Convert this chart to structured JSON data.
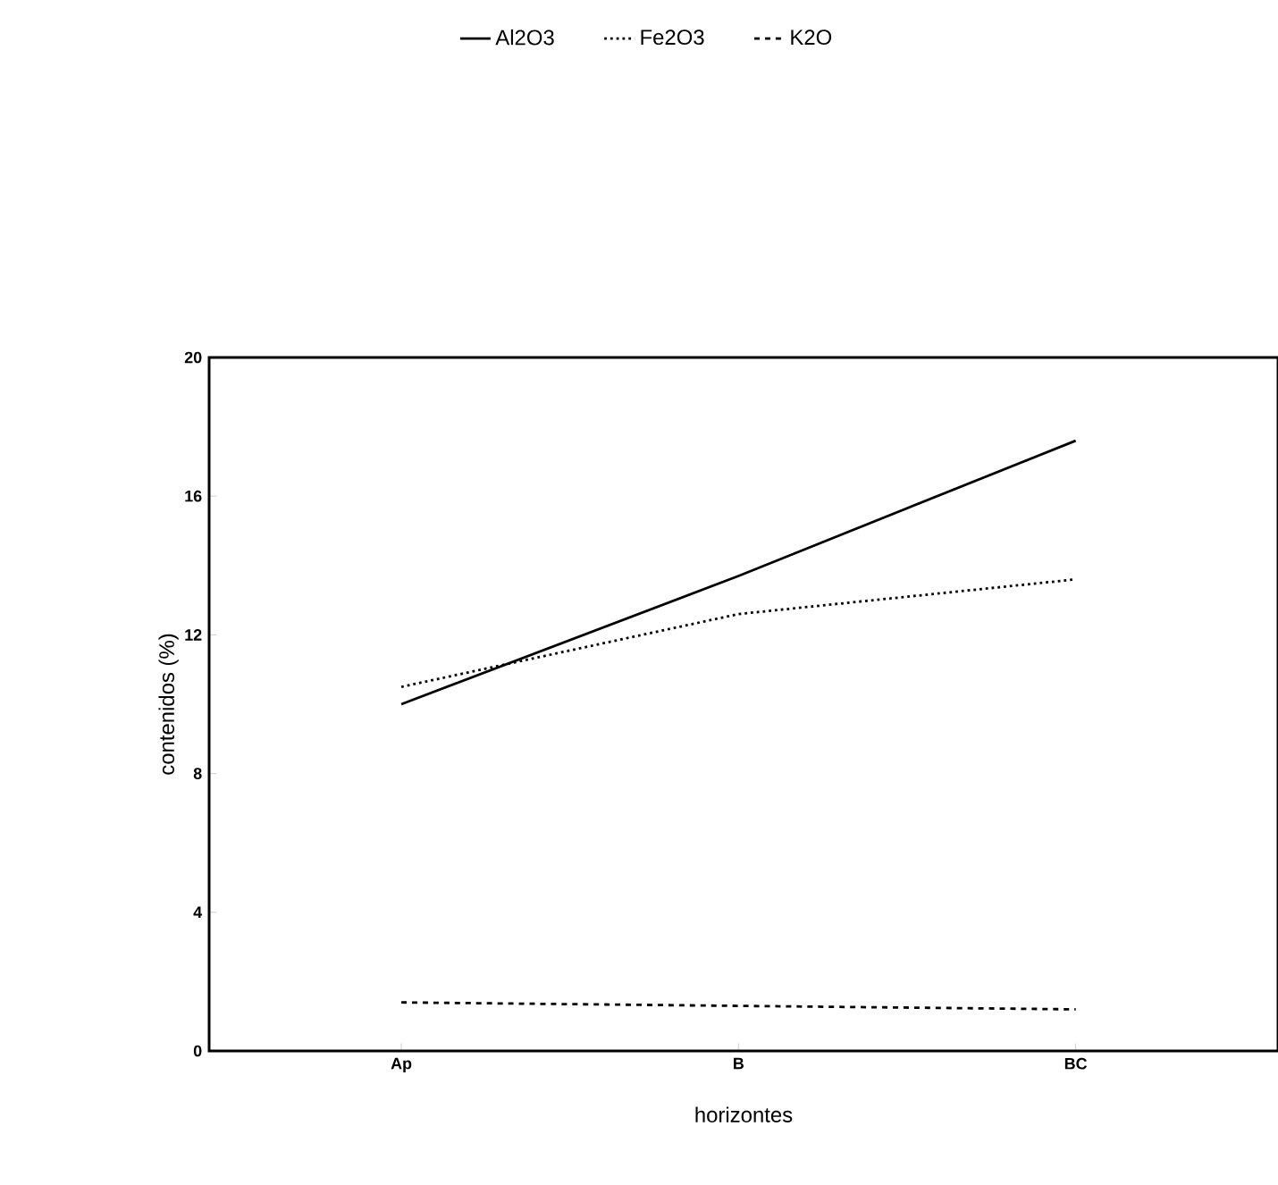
{
  "chart_data": {
    "type": "line",
    "xlabel": "horizontes",
    "ylabel": "contenidos (%)",
    "categories": [
      "Ap",
      "B",
      "BC"
    ],
    "ylim": [
      0,
      20
    ],
    "yticks": [
      0,
      4,
      8,
      12,
      16,
      20
    ],
    "legend": "top",
    "series": [
      {
        "name": "Al2O3",
        "color": "#000000",
        "line_style": "solid",
        "values": [
          10.0,
          13.7,
          17.6
        ]
      },
      {
        "name": "Fe2O3",
        "color": "#000000",
        "line_style": "dotted",
        "values": [
          10.5,
          12.6,
          13.6
        ]
      },
      {
        "name": "K2O",
        "color": "#000000",
        "line_style": "dashed",
        "values": [
          1.4,
          1.3,
          1.2
        ]
      }
    ]
  }
}
